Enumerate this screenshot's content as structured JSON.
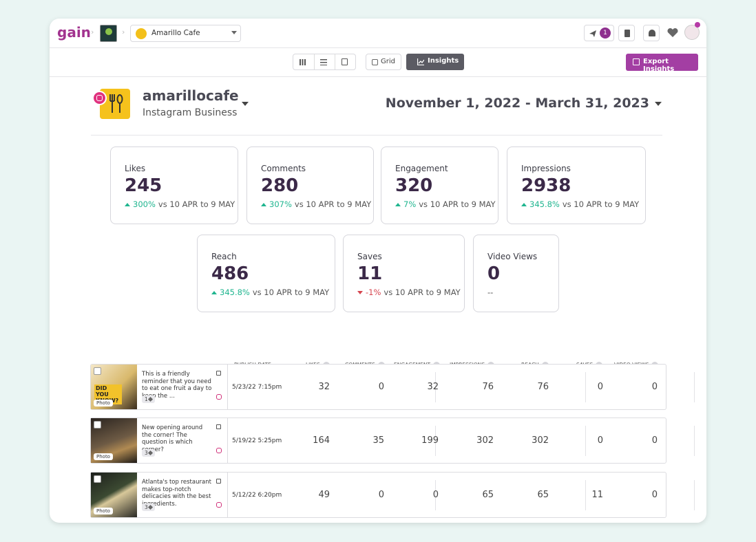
{
  "header": {
    "logo": "gain",
    "account": "Amarillo Cafe",
    "notification_count": "1"
  },
  "toolbar": {
    "grid": "Grid",
    "insights": "Insights",
    "export": "Export Insights"
  },
  "profile": {
    "name": "amarillocafe",
    "type": "Instagram Business",
    "date_range": "November 1, 2022 - March 31, 2023"
  },
  "metrics": [
    {
      "label": "Likes",
      "value": 245,
      "change": "300%",
      "trend": "up",
      "comparison": "vs 10 APR to 9 MAY"
    },
    {
      "label": "Comments",
      "value": 280,
      "change": "307%",
      "trend": "up",
      "comparison": "vs 10 APR to 9 MAY"
    },
    {
      "label": "Engagement",
      "value": 320,
      "change": "7%",
      "trend": "up",
      "comparison": "vs 10 APR to 9 MAY"
    },
    {
      "label": "Impressions",
      "value": 2938,
      "change": "345.8%",
      "trend": "up",
      "comparison": "vs 10 APR to 9 MAY"
    },
    {
      "label": "Reach",
      "value": 486,
      "change": "345.8%",
      "trend": "up",
      "comparison": "vs 10 APR to 9 MAY"
    },
    {
      "label": "Saves",
      "value": 11,
      "change": "-1%",
      "trend": "down",
      "comparison": "vs 10 APR to 9 MAY"
    },
    {
      "label": "Video Views",
      "value": 0,
      "change": "--",
      "trend": null,
      "comparison": null
    }
  ],
  "table": {
    "columns": [
      "PUBLISH DATE",
      "LIKES",
      "COMMENTS",
      "ENGAGEMENT",
      "IMPRESSIONS",
      "REACH",
      "SAVES",
      "VIDEO VIEWS"
    ],
    "rows": [
      {
        "caption": "This is a friendly reminder that you need to eat one fruit a day to keep the ...",
        "tags": 1,
        "media": "Photo",
        "image_text": "DID YOU KNOW?",
        "date": "5/23/22 7:15pm",
        "values": [
          32,
          0,
          32,
          76,
          76,
          0,
          0
        ]
      },
      {
        "caption": "New opening around the corner! The question is which corner?",
        "tags": 3,
        "media": "Photo",
        "image_text": null,
        "date": "5/19/22 5:25pm",
        "values": [
          164,
          35,
          199,
          302,
          302,
          0,
          0
        ]
      },
      {
        "caption": "Atlanta's top restaurant makes top-notch delicacies with the best ingredients.",
        "tags": 3,
        "media": "Photo",
        "image_text": null,
        "date": "5/12/22 6:20pm",
        "values": [
          49,
          0,
          0,
          65,
          65,
          11,
          0
        ]
      }
    ]
  }
}
